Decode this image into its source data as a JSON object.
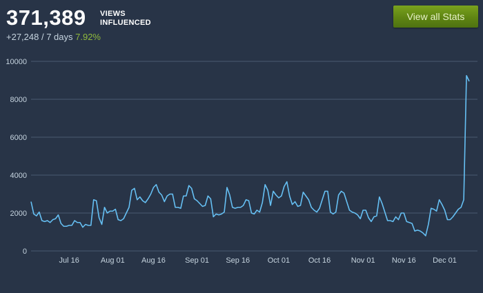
{
  "header": {
    "total_views": "371,389",
    "label_line1": "VIEWS",
    "label_line2": "INFLUENCED",
    "change": "+27,248 / 7 days",
    "change_pct": "7.92%",
    "view_all_label": "View all Stats"
  },
  "colors": {
    "background": "#283447",
    "line": "#66c0f4",
    "grid": "#4a5a70",
    "button": "#5f8513",
    "positive": "#90ba3c"
  },
  "chart_data": {
    "type": "line",
    "title": "",
    "xlabel": "",
    "ylabel": "",
    "ylim": [
      0,
      10000
    ],
    "yticks": [
      0,
      2000,
      4000,
      6000,
      8000,
      10000
    ],
    "ytick_labels": [
      "0",
      "2000",
      "4000",
      "6000",
      "8000",
      "10000"
    ],
    "xticks": [
      {
        "label": "Jul 16",
        "day": 14
      },
      {
        "label": "Aug 01",
        "day": 30
      },
      {
        "label": "Aug 16",
        "day": 45
      },
      {
        "label": "Sep 01",
        "day": 61
      },
      {
        "label": "Sep 16",
        "day": 76
      },
      {
        "label": "Oct 01",
        "day": 91
      },
      {
        "label": "Oct 16",
        "day": 106
      },
      {
        "label": "Nov 01",
        "day": 122
      },
      {
        "label": "Nov 16",
        "day": 137
      },
      {
        "label": "Dec 01",
        "day": 152
      }
    ],
    "start_date": "Jul 02",
    "series": [
      {
        "name": "Views",
        "values": [
          2600,
          1950,
          1850,
          2050,
          1600,
          1550,
          1600,
          1500,
          1650,
          1700,
          1900,
          1450,
          1300,
          1300,
          1350,
          1350,
          1600,
          1500,
          1500,
          1250,
          1400,
          1350,
          1350,
          2700,
          2650,
          1750,
          1400,
          2300,
          2000,
          2100,
          2100,
          2200,
          1650,
          1600,
          1700,
          2000,
          2300,
          3200,
          3300,
          2700,
          2850,
          2650,
          2550,
          2750,
          3000,
          3350,
          3500,
          3100,
          2950,
          2600,
          2900,
          3000,
          3000,
          2300,
          2300,
          2250,
          2900,
          2900,
          3450,
          3300,
          2750,
          2650,
          2500,
          2350,
          2400,
          2900,
          2750,
          1800,
          1950,
          1900,
          1950,
          2050,
          3350,
          2950,
          2300,
          2250,
          2300,
          2300,
          2400,
          2700,
          2650,
          2000,
          1950,
          2150,
          2050,
          2550,
          3500,
          3200,
          2400,
          3150,
          2950,
          2800,
          2900,
          3400,
          3650,
          2900,
          2450,
          2600,
          2350,
          2400,
          3100,
          2900,
          2700,
          2300,
          2150,
          2050,
          2250,
          2700,
          3150,
          3150,
          2050,
          1950,
          2050,
          2950,
          3150,
          3050,
          2600,
          2150,
          2050,
          2000,
          1900,
          1700,
          2150,
          2150,
          1750,
          1550,
          1800,
          1850,
          2850,
          2500,
          2050,
          1600,
          1600,
          1550,
          1800,
          1650,
          2000,
          2000,
          1550,
          1500,
          1450,
          1050,
          1100,
          1050,
          950,
          800,
          1400,
          2250,
          2200,
          2100,
          2700,
          2450,
          2150,
          1650,
          1650,
          1800,
          2000,
          2200,
          2300,
          2700,
          9250,
          8950
        ]
      }
    ]
  }
}
